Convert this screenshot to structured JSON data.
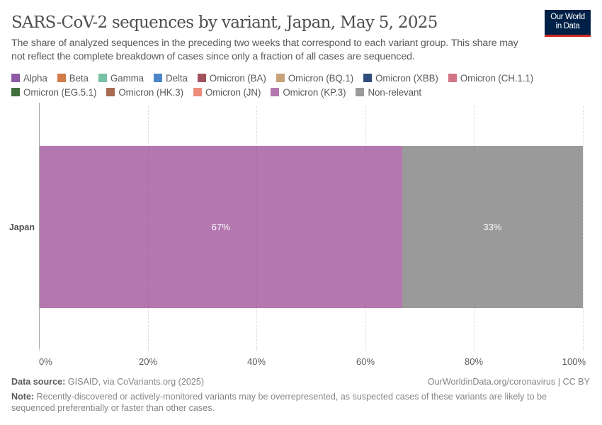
{
  "header": {
    "title": "SARS-CoV-2 sequences by variant, Japan, May 5, 2025",
    "subtitle": "The share of analyzed sequences in the preceding two weeks that correspond to each variant group. This share may not reflect the complete breakdown of cases since only a fraction of all cases are sequenced.",
    "logo_line1": "Our World",
    "logo_line2": "in Data"
  },
  "colors": {
    "logo_bg": "#002147",
    "logo_stripe": "#ce261e"
  },
  "legend": [
    {
      "label": "Alpha",
      "color": "#8e5aa5"
    },
    {
      "label": "Beta",
      "color": "#d27b49"
    },
    {
      "label": "Gamma",
      "color": "#78c0a3"
    },
    {
      "label": "Delta",
      "color": "#4c84ca"
    },
    {
      "label": "Omicron (BA)",
      "color": "#a0525c"
    },
    {
      "label": "Omicron (BQ.1)",
      "color": "#c8a178"
    },
    {
      "label": "Omicron (XBB)",
      "color": "#2f4e7d"
    },
    {
      "label": "Omicron (CH.1.1)",
      "color": "#d27586"
    },
    {
      "label": "Omicron (EG.5.1)",
      "color": "#3f6d3c"
    },
    {
      "label": "Omicron (HK.3)",
      "color": "#a86c50"
    },
    {
      "label": "Omicron (JN)",
      "color": "#ed8c7b"
    },
    {
      "label": "Omicron (KP.3)",
      "color": "#b577b0"
    },
    {
      "label": "Non-relevant",
      "color": "#9a9a9a"
    }
  ],
  "chart_data": {
    "type": "bar",
    "orientation": "horizontal",
    "stacked": true,
    "title": "SARS-CoV-2 sequences by variant, Japan, May 5, 2025",
    "subtitle": "The share of analyzed sequences in the preceding two weeks that correspond to each variant group. This share may not reflect the complete breakdown of cases since only a fraction of all cases are sequenced.",
    "categories": [
      "Japan"
    ],
    "series": [
      {
        "name": "Omicron (KP.3)",
        "values": [
          67
        ],
        "color": "#b577b0",
        "label": "67%"
      },
      {
        "name": "Non-relevant",
        "values": [
          33
        ],
        "color": "#9a9a9a",
        "label": "33%"
      }
    ],
    "xlabel": "",
    "ylabel": "",
    "xlim": [
      0,
      100
    ],
    "x_ticks": [
      "0%",
      "20%",
      "40%",
      "60%",
      "80%",
      "100%"
    ],
    "grid": "vertical dashed",
    "legend_position": "top"
  },
  "footer": {
    "source_label": "Data source:",
    "source_text": " GISAID, via CoVariants.org (2025)",
    "credit": "OurWorldinData.org/coronavirus | CC BY",
    "note_label": "Note:",
    "note_text": " Recently-discovered or actively-monitored variants may be overrepresented, as suspected cases of these variants are likely to be sequenced preferentially or faster than other cases."
  }
}
